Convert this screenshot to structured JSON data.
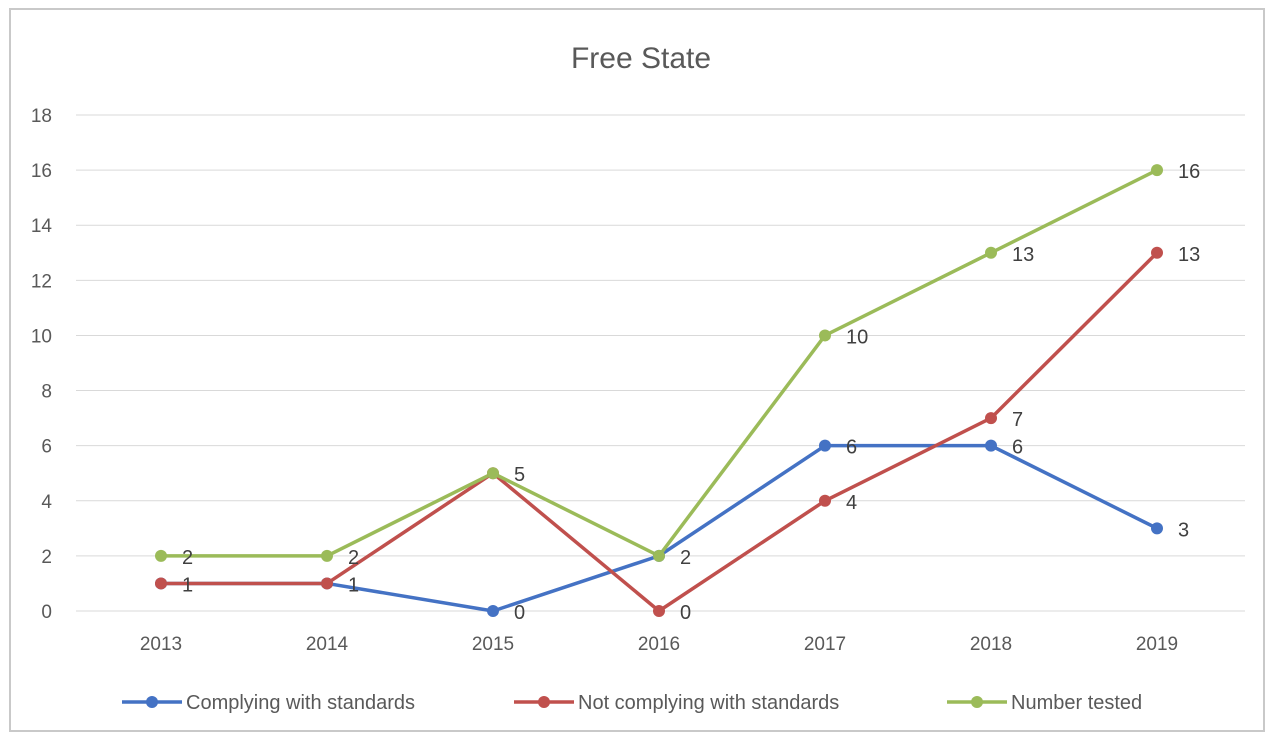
{
  "chart_data": {
    "type": "line",
    "title": "Free State",
    "xlabel": "",
    "ylabel": "",
    "categories": [
      "2013",
      "2014",
      "2015",
      "2016",
      "2017",
      "2018",
      "2019"
    ],
    "ylim": [
      0,
      18
    ],
    "yticks": [
      0,
      2,
      4,
      6,
      8,
      10,
      12,
      14,
      16,
      18
    ],
    "grid": true,
    "legend_position": "bottom",
    "series": [
      {
        "name": "Complying with standards",
        "color": "#4472c4",
        "values": [
          1,
          1,
          0,
          2,
          6,
          6,
          3
        ]
      },
      {
        "name": "Not complying with standards",
        "color": "#c0504d",
        "values": [
          1,
          1,
          5,
          0,
          4,
          7,
          13
        ]
      },
      {
        "name": "Number tested",
        "color": "#9bbb59",
        "values": [
          2,
          2,
          5,
          2,
          10,
          13,
          16
        ]
      }
    ],
    "data_labels": [
      {
        "series": 0,
        "values": [
          "",
          "1",
          "0",
          "",
          "6",
          "6",
          "3"
        ]
      },
      {
        "series": 1,
        "values": [
          "1",
          "",
          "",
          "0",
          "4",
          "7",
          "13"
        ]
      },
      {
        "series": 2,
        "values": [
          "2",
          "2",
          "5",
          "2",
          "10",
          "13",
          "16"
        ]
      }
    ]
  }
}
